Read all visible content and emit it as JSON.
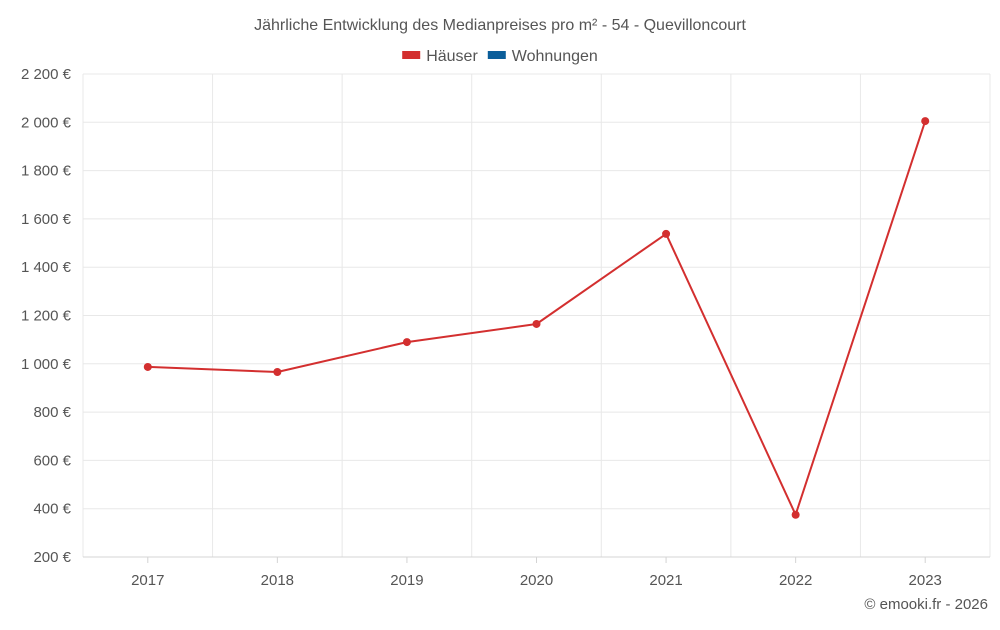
{
  "chart_data": {
    "type": "line",
    "title": "Jährliche Entwicklung des Medianpreises pro m² - 54 - Quevilloncourt",
    "categories": [
      "2017",
      "2018",
      "2019",
      "2020",
      "2021",
      "2022",
      "2023"
    ],
    "series": [
      {
        "name": "Häuser",
        "color": "#d32f2f",
        "values": [
          987,
          966,
          1090,
          1165,
          1538,
          375,
          2005
        ]
      },
      {
        "name": "Wohnungen",
        "color": "#0b5e9a",
        "values": [
          null,
          null,
          null,
          null,
          null,
          null,
          null
        ]
      }
    ],
    "ylim": [
      200,
      2200
    ],
    "y_ticks": [
      200,
      400,
      600,
      800,
      1000,
      1200,
      1400,
      1600,
      1800,
      2000,
      2200
    ],
    "y_tick_labels": [
      "200 €",
      "400 €",
      "600 €",
      "800 €",
      "1 000 €",
      "1 200 €",
      "1 400 €",
      "1 600 €",
      "1 800 €",
      "2 000 €",
      "2 200 €"
    ],
    "grid": true,
    "legend_position": "top-center",
    "xlabel": "",
    "ylabel": ""
  },
  "credit": "© emooki.fr - 2026"
}
